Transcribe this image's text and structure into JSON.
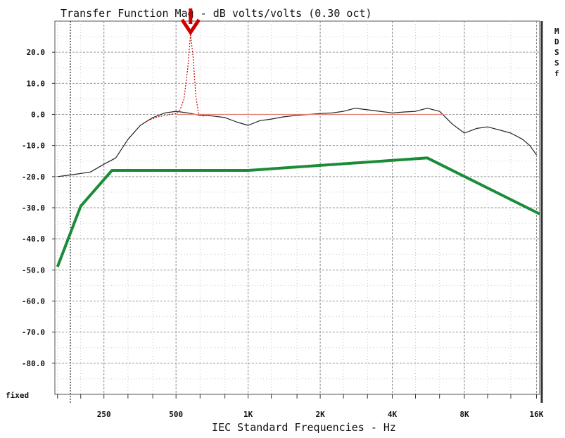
{
  "chart_data": {
    "type": "line",
    "title": "Transfer Function Mag - dB volts/volts (0.30 oct)",
    "xlabel": "IEC Standard Frequencies - Hz",
    "ylabel": "",
    "x_scale": "log",
    "xlim": [
      156,
      16500
    ],
    "ylim": [
      -90,
      30
    ],
    "y_ticks": [
      "20.0",
      "10.0",
      "0.0",
      "-10.0",
      "-20.0",
      "-30.0",
      "-40.0",
      "-50.0",
      "-60.0",
      "-70.0",
      "-80.0"
    ],
    "y_bottom_label": "fixed",
    "x_ticks": [
      {
        "label": "250",
        "value": 250
      },
      {
        "label": "500",
        "value": 500
      },
      {
        "label": "1K",
        "value": 1000
      },
      {
        "label": "2K",
        "value": 2000
      },
      {
        "label": "4K",
        "value": 4000
      },
      {
        "label": "8K",
        "value": 8000
      },
      {
        "label": "16K",
        "value": 16000
      }
    ],
    "grid": true,
    "right_side_labels": [
      "M",
      "D",
      "S",
      "S",
      "f"
    ],
    "series": [
      {
        "color": "#222222",
        "style": "thin-solid",
        "points": [
          [
            160,
            -20
          ],
          [
            180,
            -19.5
          ],
          [
            200,
            -19
          ],
          [
            220,
            -18.5
          ],
          [
            250,
            -16
          ],
          [
            280,
            -14
          ],
          [
            315,
            -8
          ],
          [
            355,
            -3.5
          ],
          [
            400,
            -1
          ],
          [
            450,
            0.5
          ],
          [
            500,
            1
          ],
          [
            560,
            0.5
          ],
          [
            630,
            -0.3
          ],
          [
            710,
            -0.5
          ],
          [
            800,
            -1
          ],
          [
            900,
            -2.5
          ],
          [
            1000,
            -3.5
          ],
          [
            1120,
            -2
          ],
          [
            1250,
            -1.5
          ],
          [
            1400,
            -0.8
          ],
          [
            1600,
            -0.3
          ],
          [
            1800,
            0
          ],
          [
            2000,
            0.3
          ],
          [
            2240,
            0.5
          ],
          [
            2500,
            1
          ],
          [
            2800,
            2
          ],
          [
            3150,
            1.5
          ],
          [
            3550,
            1
          ],
          [
            4000,
            0.5
          ],
          [
            4500,
            0.8
          ],
          [
            5000,
            1
          ],
          [
            5600,
            2
          ],
          [
            6300,
            1
          ],
          [
            7100,
            -3
          ],
          [
            8000,
            -6
          ],
          [
            9000,
            -4.5
          ],
          [
            10000,
            -4
          ],
          [
            11200,
            -5
          ],
          [
            12500,
            -6
          ],
          [
            14000,
            -8
          ],
          [
            15000,
            -10
          ],
          [
            16000,
            -13
          ]
        ]
      },
      {
        "color": "#cc0000",
        "style": "thin-dashed",
        "points": [
          [
            380,
            -2
          ],
          [
            420,
            -0.8
          ],
          [
            460,
            -0.2
          ],
          [
            500,
            0.3
          ],
          [
            520,
            1.5
          ],
          [
            540,
            5
          ],
          [
            560,
            15
          ],
          [
            575,
            26
          ],
          [
            590,
            18
          ],
          [
            605,
            6
          ],
          [
            620,
            0.5
          ],
          [
            650,
            -0.5
          ],
          [
            700,
            -0.3
          ]
        ]
      },
      {
        "color": "#e08070",
        "style": "thin-solid",
        "points": [
          [
            500,
            0
          ],
          [
            6600,
            0
          ]
        ]
      },
      {
        "color": "#1a8c38",
        "style": "thick-solid",
        "points": [
          [
            160,
            -49
          ],
          [
            200,
            -29.5
          ],
          [
            270,
            -18
          ],
          [
            1000,
            -18
          ],
          [
            5600,
            -14
          ],
          [
            16500,
            -32
          ]
        ]
      }
    ],
    "annotations": [
      {
        "type": "down-arrow",
        "color": "#cc0000",
        "x": 575
      }
    ]
  }
}
